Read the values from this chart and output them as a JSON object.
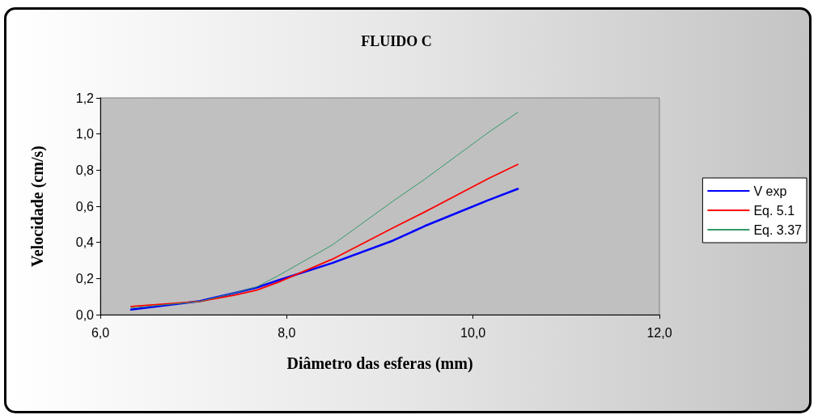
{
  "chart_data": {
    "type": "line",
    "title": "FLUIDO C",
    "xlabel": "Diâmetro das esferas (mm)",
    "ylabel": "Velocidade (cm/s)",
    "x": [
      6.33,
      7.07,
      7.44,
      7.68,
      7.91,
      8.49,
      9.14,
      9.48,
      10.16,
      10.48
    ],
    "series": [
      {
        "name": "V exp",
        "color": "#0000ff",
        "values": [
          0.028,
          0.075,
          0.12,
          0.15,
          0.19,
          0.286,
          0.41,
          0.49,
          0.633,
          0.696
        ]
      },
      {
        "name": "Eq. 5.1",
        "color": "#ff0000",
        "values": [
          0.045,
          0.073,
          0.108,
          0.136,
          0.18,
          0.307,
          0.48,
          0.568,
          0.752,
          0.832
        ]
      },
      {
        "name": "Eq. 3.37",
        "color": "#339966",
        "values": [
          0.037,
          0.073,
          0.12,
          0.154,
          0.216,
          0.386,
          0.628,
          0.749,
          1.007,
          1.12
        ]
      }
    ],
    "xlim": [
      6,
      12
    ],
    "xticks": [
      {
        "value": 6,
        "label": "6,0"
      },
      {
        "value": 8,
        "label": "8,0"
      },
      {
        "value": 10,
        "label": "10,0"
      },
      {
        "value": 12,
        "label": "12,0"
      }
    ],
    "ylim": [
      0,
      1.2
    ],
    "yticks": [
      {
        "value": 0,
        "label": "0,0"
      },
      {
        "value": 0.2,
        "label": "0,2"
      },
      {
        "value": 0.4,
        "label": "0,4"
      },
      {
        "value": 0.6,
        "label": "0,6"
      },
      {
        "value": 0.8,
        "label": "0,8"
      },
      {
        "value": 1,
        "label": "1,0"
      },
      {
        "value": 1.2,
        "label": "1,2"
      }
    ],
    "grid": false,
    "legend": "right",
    "marker": "none",
    "line_style": "solid"
  }
}
